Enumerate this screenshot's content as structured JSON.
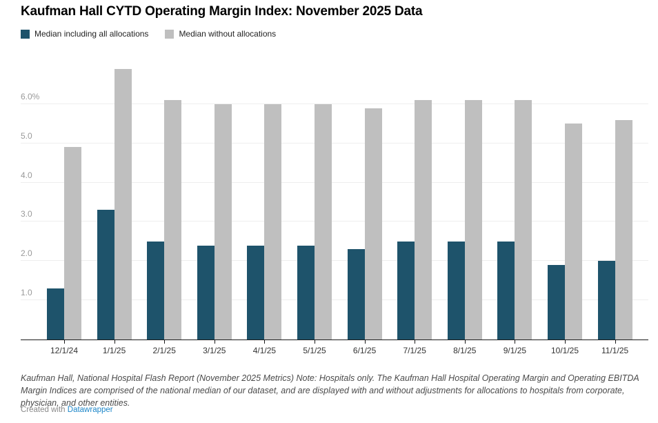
{
  "title": "Kaufman Hall CYTD Operating Margin Index: November 2025 Data",
  "legend": {
    "items": [
      {
        "label": "Median including all allocations",
        "color": "#1e536b"
      },
      {
        "label": "Median without allocations",
        "color": "#bfbfbf"
      }
    ]
  },
  "chart_data": {
    "type": "bar",
    "categories": [
      "12/1/24",
      "1/1/25",
      "2/1/25",
      "3/1/25",
      "4/1/25",
      "5/1/25",
      "6/1/25",
      "7/1/25",
      "8/1/25",
      "9/1/25",
      "10/1/25",
      "11/1/25"
    ],
    "series": [
      {
        "name": "Median including all allocations",
        "color": "#1e536b",
        "values": [
          1.3,
          3.3,
          2.5,
          2.4,
          2.4,
          2.4,
          2.3,
          2.5,
          2.5,
          2.5,
          1.9,
          2.0
        ]
      },
      {
        "name": "Median without allocations",
        "color": "#bfbfbf",
        "values": [
          4.9,
          6.9,
          6.1,
          6.0,
          6.0,
          6.0,
          5.9,
          6.1,
          6.1,
          6.1,
          5.5,
          5.6
        ]
      }
    ],
    "title": "Kaufman Hall CYTD Operating Margin Index: November 2025 Data",
    "xlabel": "",
    "ylabel": "",
    "y_tick_labels": [
      "1.0",
      "2.0",
      "3.0",
      "4.0",
      "5.0",
      "6.0%"
    ],
    "y_tick_values": [
      1,
      2,
      3,
      4,
      5,
      6
    ],
    "ylim": [
      0,
      7.0
    ],
    "grid": true,
    "legend_position": "top-left",
    "unit": "percent"
  },
  "footer": {
    "note": "Kaufman Hall, National Hospital Flash Report (November 2025 Metrics) Note: Hospitals only. The Kaufman Hall Hospital Operating Margin and Operating EBITDA Margin Indices are comprised of the national median of our dataset, and are displayed with and without adjustments for allocations to hospitals from corporate, physician, and other entities.",
    "credit_prefix": "Created with ",
    "credit_link_label": "Datawrapper"
  }
}
